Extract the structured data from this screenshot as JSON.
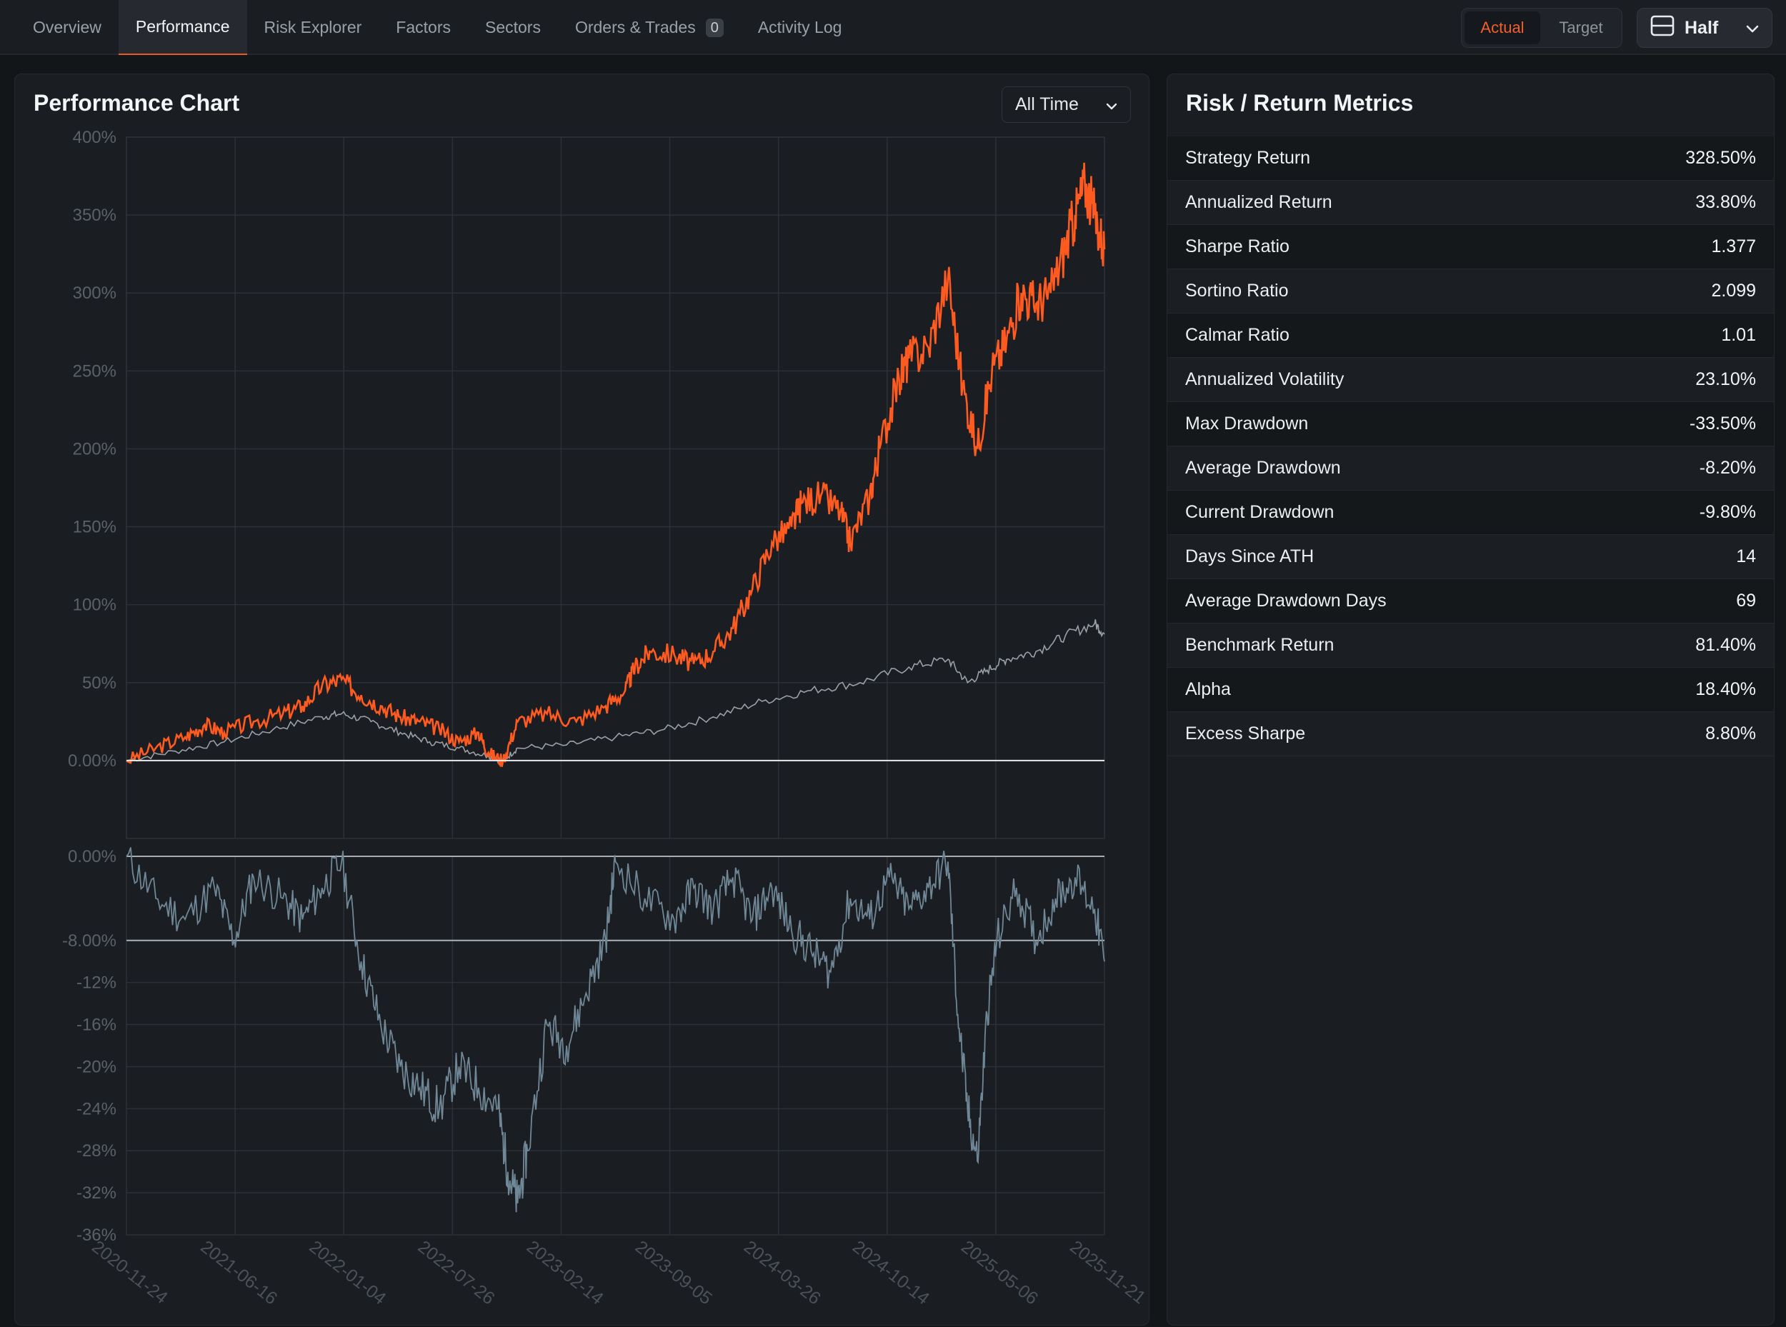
{
  "nav": {
    "tabs": [
      {
        "label": "Overview"
      },
      {
        "label": "Performance"
      },
      {
        "label": "Risk Explorer"
      },
      {
        "label": "Factors"
      },
      {
        "label": "Sectors"
      },
      {
        "label": "Orders & Trades",
        "count": "0"
      },
      {
        "label": "Activity Log"
      }
    ],
    "active_tab": "Performance",
    "toggle": {
      "actual": "Actual",
      "target": "Target",
      "selected": "Actual"
    },
    "layout_button": {
      "label": "Half",
      "icon": "split-horizontal-icon"
    }
  },
  "chart_panel": {
    "title": "Performance Chart",
    "range_select": "All Time"
  },
  "chart_data": [
    {
      "type": "line",
      "ylim": [
        -50,
        400
      ],
      "y_ticks": [
        "400%",
        "350%",
        "300%",
        "250%",
        "200%",
        "150%",
        "100%",
        "50%",
        "0.00%"
      ],
      "x_ticks": [
        "2020-11-24",
        "2021-06-16",
        "2022-01-04",
        "2022-07-26",
        "2023-02-14",
        "2023-09-05",
        "2024-03-26",
        "2024-10-14",
        "2025-05-06",
        "2025-11-21"
      ],
      "grid": true,
      "colors": {
        "strategy": "#ff5a1f",
        "benchmark": "#9aa0a6",
        "zero_line": "#e8eaed"
      },
      "series": [
        {
          "key": "strategy",
          "points": [
            [
              0,
              0
            ],
            [
              0.03,
              8
            ],
            [
              0.06,
              15
            ],
            [
              0.08,
              23
            ],
            [
              0.1,
              18
            ],
            [
              0.13,
              25
            ],
            [
              0.16,
              30
            ],
            [
              0.18,
              35
            ],
            [
              0.2,
              48
            ],
            [
              0.22,
              52
            ],
            [
              0.24,
              42
            ],
            [
              0.26,
              35
            ],
            [
              0.28,
              28
            ],
            [
              0.3,
              25
            ],
            [
              0.32,
              20
            ],
            [
              0.34,
              12
            ],
            [
              0.36,
              18
            ],
            [
              0.37,
              5
            ],
            [
              0.385,
              0
            ],
            [
              0.4,
              25
            ],
            [
              0.43,
              30
            ],
            [
              0.46,
              25
            ],
            [
              0.49,
              35
            ],
            [
              0.51,
              45
            ],
            [
              0.52,
              60
            ],
            [
              0.535,
              70
            ],
            [
              0.56,
              68
            ],
            [
              0.58,
              62
            ],
            [
              0.6,
              70
            ],
            [
              0.62,
              85
            ],
            [
              0.64,
              110
            ],
            [
              0.66,
              140
            ],
            [
              0.68,
              150
            ],
            [
              0.69,
              165
            ],
            [
              0.71,
              170
            ],
            [
              0.73,
              160
            ],
            [
              0.74,
              140
            ],
            [
              0.76,
              170
            ],
            [
              0.77,
              200
            ],
            [
              0.79,
              245
            ],
            [
              0.8,
              258
            ],
            [
              0.82,
              265
            ],
            [
              0.84,
              310
            ],
            [
              0.855,
              240
            ],
            [
              0.87,
              200
            ],
            [
              0.885,
              250
            ],
            [
              0.9,
              270
            ],
            [
              0.915,
              300
            ],
            [
              0.93,
              293
            ],
            [
              0.945,
              300
            ],
            [
              0.96,
              330
            ],
            [
              0.97,
              350
            ],
            [
              0.98,
              370
            ],
            [
              0.99,
              350
            ],
            [
              1.0,
              328
            ]
          ]
        },
        {
          "key": "benchmark",
          "points": [
            [
              0,
              0
            ],
            [
              0.05,
              6
            ],
            [
              0.1,
              12
            ],
            [
              0.15,
              20
            ],
            [
              0.2,
              28
            ],
            [
              0.22,
              30
            ],
            [
              0.25,
              25
            ],
            [
              0.28,
              18
            ],
            [
              0.31,
              12
            ],
            [
              0.34,
              8
            ],
            [
              0.37,
              3
            ],
            [
              0.385,
              0
            ],
            [
              0.4,
              8
            ],
            [
              0.45,
              10
            ],
            [
              0.5,
              15
            ],
            [
              0.55,
              20
            ],
            [
              0.6,
              28
            ],
            [
              0.65,
              38
            ],
            [
              0.7,
              45
            ],
            [
              0.75,
              50
            ],
            [
              0.8,
              60
            ],
            [
              0.84,
              65
            ],
            [
              0.86,
              50
            ],
            [
              0.88,
              58
            ],
            [
              0.9,
              65
            ],
            [
              0.93,
              70
            ],
            [
              0.96,
              80
            ],
            [
              0.99,
              88
            ],
            [
              1.0,
              81
            ]
          ]
        }
      ]
    },
    {
      "type": "area",
      "title": "",
      "ylim": [
        -36,
        0
      ],
      "y_ticks": [
        "0.00%",
        "-8.00%",
        "-12%",
        "-16%",
        "-20%",
        "-24%",
        "-28%",
        "-32%",
        "-36%"
      ],
      "average_line": -8,
      "grid": true,
      "colors": {
        "drawdown": "#6f8796",
        "average_line": "#a9b3bb"
      },
      "series": [
        {
          "key": "drawdown",
          "points": [
            [
              0,
              0
            ],
            [
              0.03,
              -4
            ],
            [
              0.06,
              -6
            ],
            [
              0.09,
              -3
            ],
            [
              0.11,
              -8
            ],
            [
              0.13,
              -2
            ],
            [
              0.16,
              -4
            ],
            [
              0.18,
              -6
            ],
            [
              0.2,
              -3
            ],
            [
              0.22,
              -0.5
            ],
            [
              0.24,
              -10
            ],
            [
              0.26,
              -16
            ],
            [
              0.28,
              -20
            ],
            [
              0.3,
              -22
            ],
            [
              0.32,
              -24
            ],
            [
              0.34,
              -20
            ],
            [
              0.36,
              -22
            ],
            [
              0.38,
              -24
            ],
            [
              0.39,
              -30
            ],
            [
              0.4,
              -33
            ],
            [
              0.41,
              -28
            ],
            [
              0.43,
              -16
            ],
            [
              0.45,
              -18
            ],
            [
              0.47,
              -13
            ],
            [
              0.49,
              -8
            ],
            [
              0.5,
              -0.5
            ],
            [
              0.53,
              -4
            ],
            [
              0.56,
              -6
            ],
            [
              0.58,
              -3
            ],
            [
              0.6,
              -5
            ],
            [
              0.62,
              -2
            ],
            [
              0.64,
              -6
            ],
            [
              0.66,
              -3
            ],
            [
              0.68,
              -7
            ],
            [
              0.7,
              -9
            ],
            [
              0.72,
              -11
            ],
            [
              0.74,
              -4
            ],
            [
              0.76,
              -6
            ],
            [
              0.78,
              -2
            ],
            [
              0.8,
              -5
            ],
            [
              0.82,
              -3
            ],
            [
              0.84,
              -0.5
            ],
            [
              0.85,
              -15
            ],
            [
              0.86,
              -24
            ],
            [
              0.87,
              -29
            ],
            [
              0.88,
              -15
            ],
            [
              0.89,
              -8
            ],
            [
              0.91,
              -3
            ],
            [
              0.93,
              -8
            ],
            [
              0.95,
              -4
            ],
            [
              0.97,
              -2
            ],
            [
              0.99,
              -5
            ],
            [
              1.0,
              -10
            ]
          ]
        }
      ]
    }
  ],
  "metrics_panel": {
    "title": "Risk / Return Metrics",
    "rows": [
      {
        "label": "Strategy Return",
        "value": "328.50%"
      },
      {
        "label": "Annualized Return",
        "value": "33.80%"
      },
      {
        "label": "Sharpe Ratio",
        "value": "1.377"
      },
      {
        "label": "Sortino Ratio",
        "value": "2.099"
      },
      {
        "label": "Calmar Ratio",
        "value": "1.01"
      },
      {
        "label": "Annualized Volatility",
        "value": "23.10%"
      },
      {
        "label": "Max Drawdown",
        "value": "-33.50%"
      },
      {
        "label": "Average Drawdown",
        "value": "-8.20%"
      },
      {
        "label": "Current Drawdown",
        "value": "-9.80%"
      },
      {
        "label": "Days Since ATH",
        "value": "14"
      },
      {
        "label": "Average Drawdown Days",
        "value": "69"
      },
      {
        "label": "Benchmark Return",
        "value": "81.40%"
      },
      {
        "label": "Alpha",
        "value": "18.40%"
      },
      {
        "label": "Excess Sharpe",
        "value": "8.80%"
      }
    ]
  }
}
